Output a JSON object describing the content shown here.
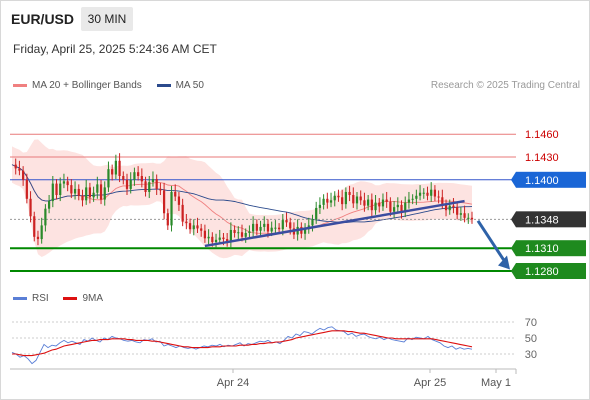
{
  "header": {
    "symbol": "EUR/USD",
    "timeframe": "30 MIN"
  },
  "datetime": "Friday, April 25, 2025 5:24:36 AM CET",
  "legend": {
    "ma20_label": "MA 20 + Bollinger Bands",
    "ma50_label": "MA 50",
    "ma20_color": "#f08080",
    "ma50_color": "#2b4a8c"
  },
  "credit": "Research © 2025 Trading Central",
  "rsi_legend": {
    "rsi_label": "RSI",
    "ma_label": "9MA",
    "rsi_color": "#5a7fd6",
    "ma_color": "#dd1111"
  },
  "colors": {
    "up": "#2a8a2a",
    "down": "#cc2222",
    "support": "#008800",
    "pivot": "#3355cc",
    "resistance": "#e87a7a",
    "trend": "#3b4da0",
    "arrow": "#2e62a8",
    "current": "#333333"
  },
  "chart_data": [
    {
      "type": "candlestick",
      "ylim": [
        1.1255,
        1.1505
      ],
      "x_ticks": [
        "Apr 24",
        "Apr 25",
        "May 1"
      ],
      "levels": [
        {
          "label": "1.1460",
          "value": 1.146,
          "kind": "resistance"
        },
        {
          "label": "1.1430",
          "value": 1.143,
          "kind": "resistance"
        },
        {
          "label": "1.1400",
          "value": 1.14,
          "kind": "pivot"
        },
        {
          "label": "1.1348",
          "value": 1.1348,
          "kind": "current"
        },
        {
          "label": "1.1310",
          "value": 1.131,
          "kind": "support"
        },
        {
          "label": "1.1280",
          "value": 1.128,
          "kind": "support"
        }
      ],
      "close": [
        1.142,
        1.1415,
        1.1412,
        1.14,
        1.1375,
        1.1352,
        1.1325,
        1.1322,
        1.134,
        1.1362,
        1.1372,
        1.1395,
        1.138,
        1.1395,
        1.1398,
        1.1393,
        1.1382,
        1.1388,
        1.1379,
        1.1373,
        1.139,
        1.1377,
        1.1383,
        1.1394,
        1.1374,
        1.139,
        1.1414,
        1.1407,
        1.1425,
        1.1405,
        1.14,
        1.1388,
        1.14,
        1.141,
        1.1405,
        1.1398,
        1.1384,
        1.1397,
        1.1401,
        1.1388,
        1.1386,
        1.1356,
        1.134,
        1.1384,
        1.1378,
        1.1367,
        1.1345,
        1.1343,
        1.1335,
        1.134,
        1.1336,
        1.1333,
        1.1323,
        1.1325,
        1.1318,
        1.1321,
        1.1324,
        1.1322,
        1.1318,
        1.1334,
        1.133,
        1.1331,
        1.1325,
        1.133,
        1.1332,
        1.1342,
        1.1333,
        1.1338,
        1.1342,
        1.1332,
        1.1337,
        1.1337,
        1.1335,
        1.1347,
        1.1344,
        1.1336,
        1.1328,
        1.1338,
        1.1329,
        1.1335,
        1.134,
        1.1348,
        1.1363,
        1.1367,
        1.1375,
        1.137,
        1.1373,
        1.1379,
        1.1377,
        1.1368,
        1.1384,
        1.138,
        1.1369,
        1.1378,
        1.1373,
        1.1366,
        1.1374,
        1.136,
        1.137,
        1.1365,
        1.1374,
        1.1371,
        1.1358,
        1.1364,
        1.1367,
        1.1357,
        1.137,
        1.1374,
        1.1375,
        1.1379,
        1.1383,
        1.1383,
        1.1379,
        1.1387,
        1.1378,
        1.1377,
        1.1368,
        1.136,
        1.1366,
        1.1364,
        1.1354,
        1.1356,
        1.135,
        1.135,
        1.1348
      ]
    },
    {
      "type": "line",
      "title": "RSI",
      "y_ticks": [
        70,
        50,
        30
      ],
      "ylim": [
        20,
        80
      ],
      "series": [
        {
          "name": "RSI",
          "values": [
            32,
            30,
            26,
            28,
            24,
            18,
            22,
            32,
            42,
            38,
            41,
            40,
            44,
            47,
            44,
            46,
            44,
            42,
            48,
            46,
            50,
            47,
            45,
            50,
            48,
            52,
            50,
            49,
            47,
            46,
            47,
            45,
            44,
            48,
            47,
            49,
            45,
            46,
            40,
            42,
            40,
            38,
            40,
            38,
            37,
            38,
            36,
            38,
            40,
            39,
            41,
            40,
            42,
            39,
            41,
            40,
            42,
            44,
            40,
            43,
            42,
            44,
            46,
            45,
            47,
            44,
            45,
            43,
            47,
            52,
            50,
            55,
            53,
            58,
            57,
            55,
            59,
            62,
            60,
            63,
            64,
            60,
            59,
            58,
            54,
            56,
            52,
            54,
            55,
            52,
            50,
            49,
            51,
            48,
            50,
            48,
            47,
            46,
            45,
            50,
            48,
            51,
            50,
            49,
            52,
            48,
            46,
            44,
            40,
            38,
            40,
            36,
            38,
            36,
            37,
            36
          ]
        },
        {
          "name": "9MA",
          "values": [
            30,
            30,
            29,
            28,
            28,
            28,
            29,
            30,
            31,
            33,
            35,
            36,
            38,
            40,
            41,
            42,
            43,
            44,
            45,
            46,
            47,
            47,
            48,
            48,
            48,
            49,
            49,
            49,
            49,
            48,
            48,
            47,
            47,
            47,
            47,
            46,
            46,
            45,
            44,
            43,
            42,
            41,
            40,
            39,
            39,
            38,
            38,
            38,
            38,
            38,
            39,
            39,
            39,
            40,
            40,
            40,
            40,
            41,
            41,
            41,
            42,
            42,
            43,
            43,
            44,
            44,
            45,
            45,
            46,
            47,
            48,
            50,
            51,
            52,
            53,
            54,
            55,
            56,
            57,
            58,
            59,
            59,
            59,
            59,
            58,
            58,
            57,
            56,
            56,
            55,
            54,
            53,
            52,
            51,
            50,
            50,
            49,
            49,
            49,
            49,
            49,
            49,
            49,
            49,
            49,
            49,
            48,
            47,
            46,
            45,
            44,
            43,
            42,
            41,
            40,
            39
          ]
        }
      ]
    }
  ]
}
